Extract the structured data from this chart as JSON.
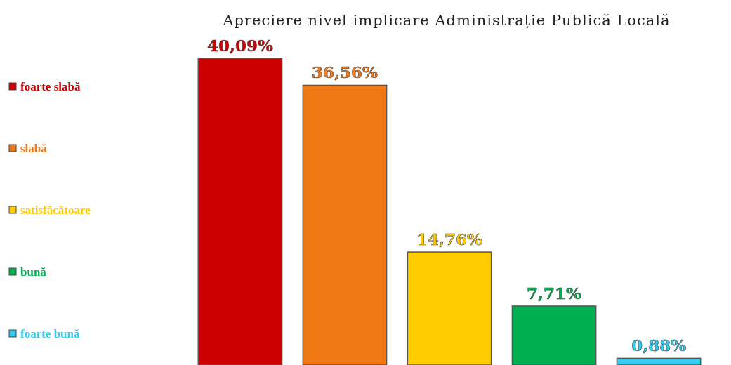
{
  "chart_data": {
    "type": "bar",
    "title": "Apreciere nivel implicare Administrație Publică Locală",
    "categories": [
      null
    ],
    "legend": "left",
    "series": [
      {
        "name": "foarte slabă",
        "color": "#cc0000",
        "values": [
          40.09
        ],
        "value_labels": [
          "40,09%"
        ]
      },
      {
        "name": "slabă",
        "color": "#f07814",
        "values": [
          36.56
        ],
        "value_labels": [
          "36,56%"
        ]
      },
      {
        "name": "satisfăcătoare",
        "color": "#ffcc00",
        "values": [
          14.76
        ],
        "value_labels": [
          "14,76%"
        ]
      },
      {
        "name": "bună",
        "color": "#00b050",
        "values": [
          7.71
        ],
        "value_labels": [
          "7,71%"
        ]
      },
      {
        "name": "foarte bună",
        "color": "#33ccee",
        "values": [
          0.88
        ],
        "value_labels": [
          "0,88%"
        ]
      }
    ]
  }
}
